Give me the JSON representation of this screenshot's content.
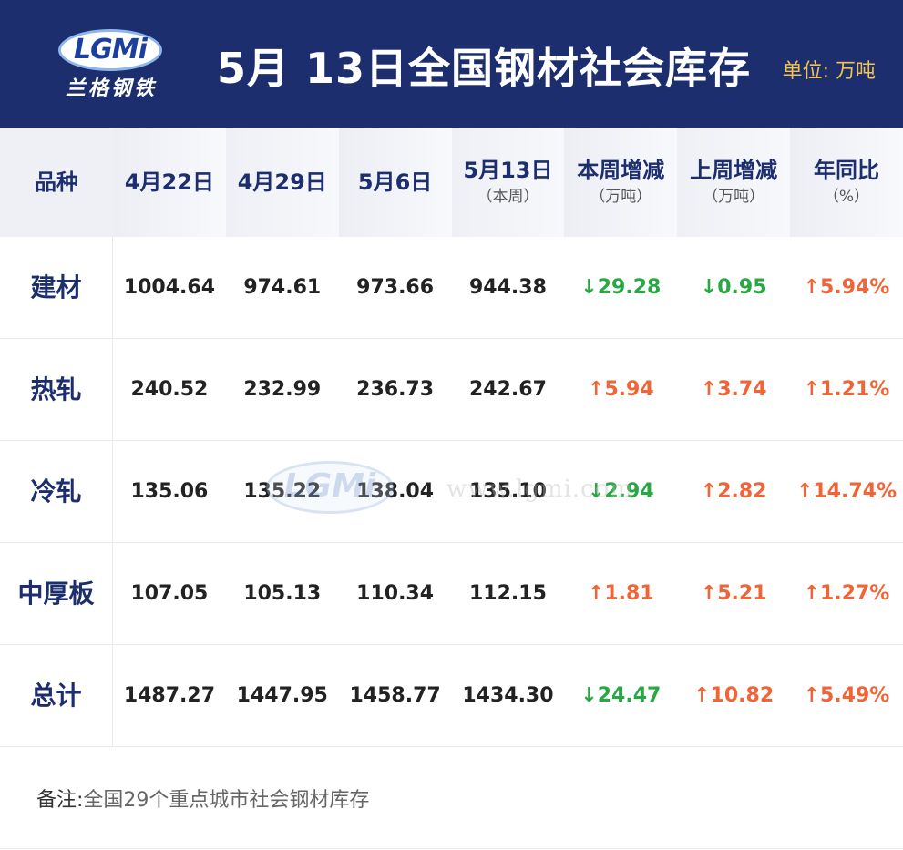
{
  "header": {
    "logo_letters": "LGMi",
    "logo_chinese": "兰格钢铁",
    "title": "5月 13日全国钢材社会库存",
    "unit": "单位: 万吨"
  },
  "table": {
    "columns": [
      {
        "label": "品种",
        "sub": ""
      },
      {
        "label": "4月22日",
        "sub": ""
      },
      {
        "label": "4月29日",
        "sub": ""
      },
      {
        "label": "5月6日",
        "sub": ""
      },
      {
        "label": "5月13日",
        "sub": "（本周）"
      },
      {
        "label": "本周增减",
        "sub": "（万吨）"
      },
      {
        "label": "上周增减",
        "sub": "（万吨）"
      },
      {
        "label": "年同比",
        "sub": "（%）"
      }
    ],
    "rows": [
      {
        "name": "建材",
        "v1": "1004.64",
        "v2": "974.61",
        "v3": "973.66",
        "v4": "944.38",
        "wk": "↓29.28",
        "wk_dir": "down",
        "lw": "↓0.95",
        "lw_dir": "down",
        "yoy": "↑5.94%",
        "yoy_dir": "up"
      },
      {
        "name": "热轧",
        "v1": "240.52",
        "v2": "232.99",
        "v3": "236.73",
        "v4": "242.67",
        "wk": "↑5.94",
        "wk_dir": "up",
        "lw": "↑3.74",
        "lw_dir": "up",
        "yoy": "↑1.21%",
        "yoy_dir": "up"
      },
      {
        "name": "冷轧",
        "v1": "135.06",
        "v2": "135.22",
        "v3": "138.04",
        "v4": "135.10",
        "wk": "↓2.94",
        "wk_dir": "down",
        "lw": "↑2.82",
        "lw_dir": "up",
        "yoy": "↑14.74%",
        "yoy_dir": "up"
      },
      {
        "name": "中厚板",
        "v1": "107.05",
        "v2": "105.13",
        "v3": "110.34",
        "v4": "112.15",
        "wk": "↑1.81",
        "wk_dir": "up",
        "lw": "↑5.21",
        "lw_dir": "up",
        "yoy": "↑1.27%",
        "yoy_dir": "up"
      },
      {
        "name": "总计",
        "v1": "1487.27",
        "v2": "1447.95",
        "v3": "1458.77",
        "v4": "1434.30",
        "wk": "↓24.47",
        "wk_dir": "down",
        "lw": "↑10.82",
        "lw_dir": "up",
        "yoy": "↑5.49%",
        "yoy_dir": "up"
      }
    ]
  },
  "watermark": {
    "letters": "LGMi",
    "url": "www.lgmi.com"
  },
  "footer": {
    "note_label": "备注:",
    "note_text": "全国29个重点城市社会钢材库存"
  },
  "colors": {
    "header_bg": "#1d2e6e",
    "unit_text": "#f3c24a",
    "decrease": "#27a844",
    "increase": "#f06437"
  }
}
